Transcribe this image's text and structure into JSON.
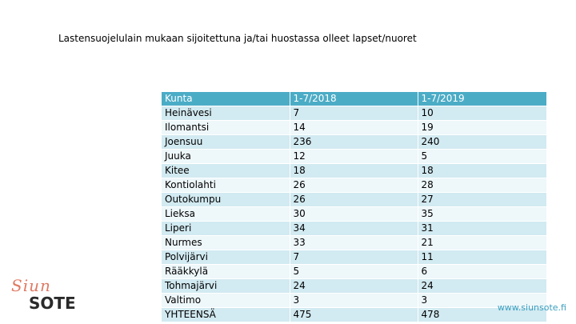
{
  "title": "Lastensuojelulain mukaan sijoitettuna ja/tai huostassa olleet lapset/nuoret",
  "table": {
    "headers": [
      "Kunta",
      "1-7/2018",
      "1-7/2019"
    ],
    "rows": [
      [
        "Heinävesi",
        "7",
        "10"
      ],
      [
        "Ilomantsi",
        "14",
        "19"
      ],
      [
        "Joensuu",
        "236",
        "240"
      ],
      [
        "Juuka",
        "12",
        "5"
      ],
      [
        "Kitee",
        "18",
        "18"
      ],
      [
        "Kontiolahti",
        "26",
        "28"
      ],
      [
        "Outokumpu",
        "26",
        "27"
      ],
      [
        "Lieksa",
        "30",
        "35"
      ],
      [
        "Liperi",
        "34",
        "31"
      ],
      [
        "Nurmes",
        "33",
        "21"
      ],
      [
        "Polvijärvi",
        "7",
        "11"
      ],
      [
        "Rääkkylä",
        "5",
        "6"
      ],
      [
        "Tohmajärvi",
        "24",
        "24"
      ],
      [
        "Valtimo",
        "3",
        "3"
      ]
    ],
    "total": [
      "YHTEENSÄ",
      "475",
      "478"
    ]
  },
  "logo": {
    "script_text": "Siun",
    "main_text": "SOTE"
  },
  "website": "www.siunsote.fi",
  "colors": {
    "header_bg": "#4bacc6",
    "row_light": "#d2eaf1",
    "row_white": "#eef7fa",
    "logo_accent": "#e07a63",
    "link": "#3a9fc0"
  }
}
